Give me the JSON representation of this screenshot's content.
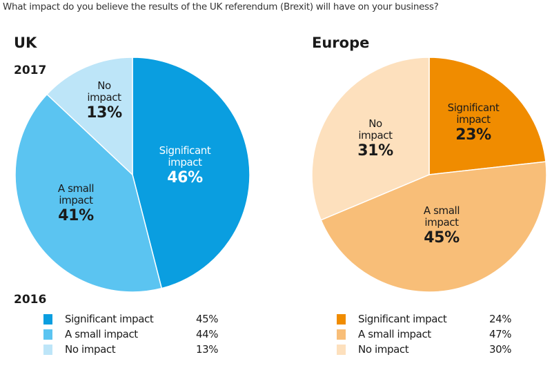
{
  "question": "What impact do you believe the results of the UK referendum (Brexit) will have on your business?",
  "chart_data": [
    {
      "type": "pie",
      "title": "UK",
      "subtitle": "2017",
      "start": "top",
      "direction": "clockwise",
      "slices": [
        {
          "label": "Significant impact",
          "value": 46,
          "display": "46%",
          "color": "#0a9ee0"
        },
        {
          "label": "A small impact",
          "value": 41,
          "display": "41%",
          "color": "#5bc4f1"
        },
        {
          "label": "No impact",
          "value": 13,
          "display": "13%",
          "color": "#bde5f8"
        }
      ],
      "legend_title": "2016",
      "legend": [
        {
          "label": "Significant impact",
          "value": "45%",
          "color": "#0a9ee0"
        },
        {
          "label": "A small impact",
          "value": "44%",
          "color": "#5bc4f1"
        },
        {
          "label": "No impact",
          "value": "13%",
          "color": "#bde5f8"
        }
      ]
    },
    {
      "type": "pie",
      "title": "Europe",
      "start": "top",
      "direction": "clockwise",
      "slices": [
        {
          "label": "Significant impact",
          "value": 23,
          "display": "23%",
          "color": "#f08c00"
        },
        {
          "label": "A small impact",
          "value": 45,
          "display": "45%",
          "color": "#f8be78"
        },
        {
          "label": "No impact",
          "value": 31,
          "display": "31%",
          "color": "#fde0bd"
        }
      ],
      "legend": [
        {
          "label": "Significant impact",
          "value": "24%",
          "color": "#f08c00"
        },
        {
          "label": "A small impact",
          "value": "47%",
          "color": "#f8be78"
        },
        {
          "label": "No impact",
          "value": "30%",
          "color": "#fde0bd"
        }
      ]
    }
  ],
  "labels": {
    "uk": [
      {
        "l1": "Significant",
        "l2": "impact"
      },
      {
        "l1": "A small",
        "l2": "impact"
      },
      {
        "l1": "No",
        "l2": "impact"
      }
    ],
    "eu": [
      {
        "l1": "Significant",
        "l2": "impact"
      },
      {
        "l1": "A small",
        "l2": "impact"
      },
      {
        "l1": "No",
        "l2": "impact"
      }
    ]
  }
}
